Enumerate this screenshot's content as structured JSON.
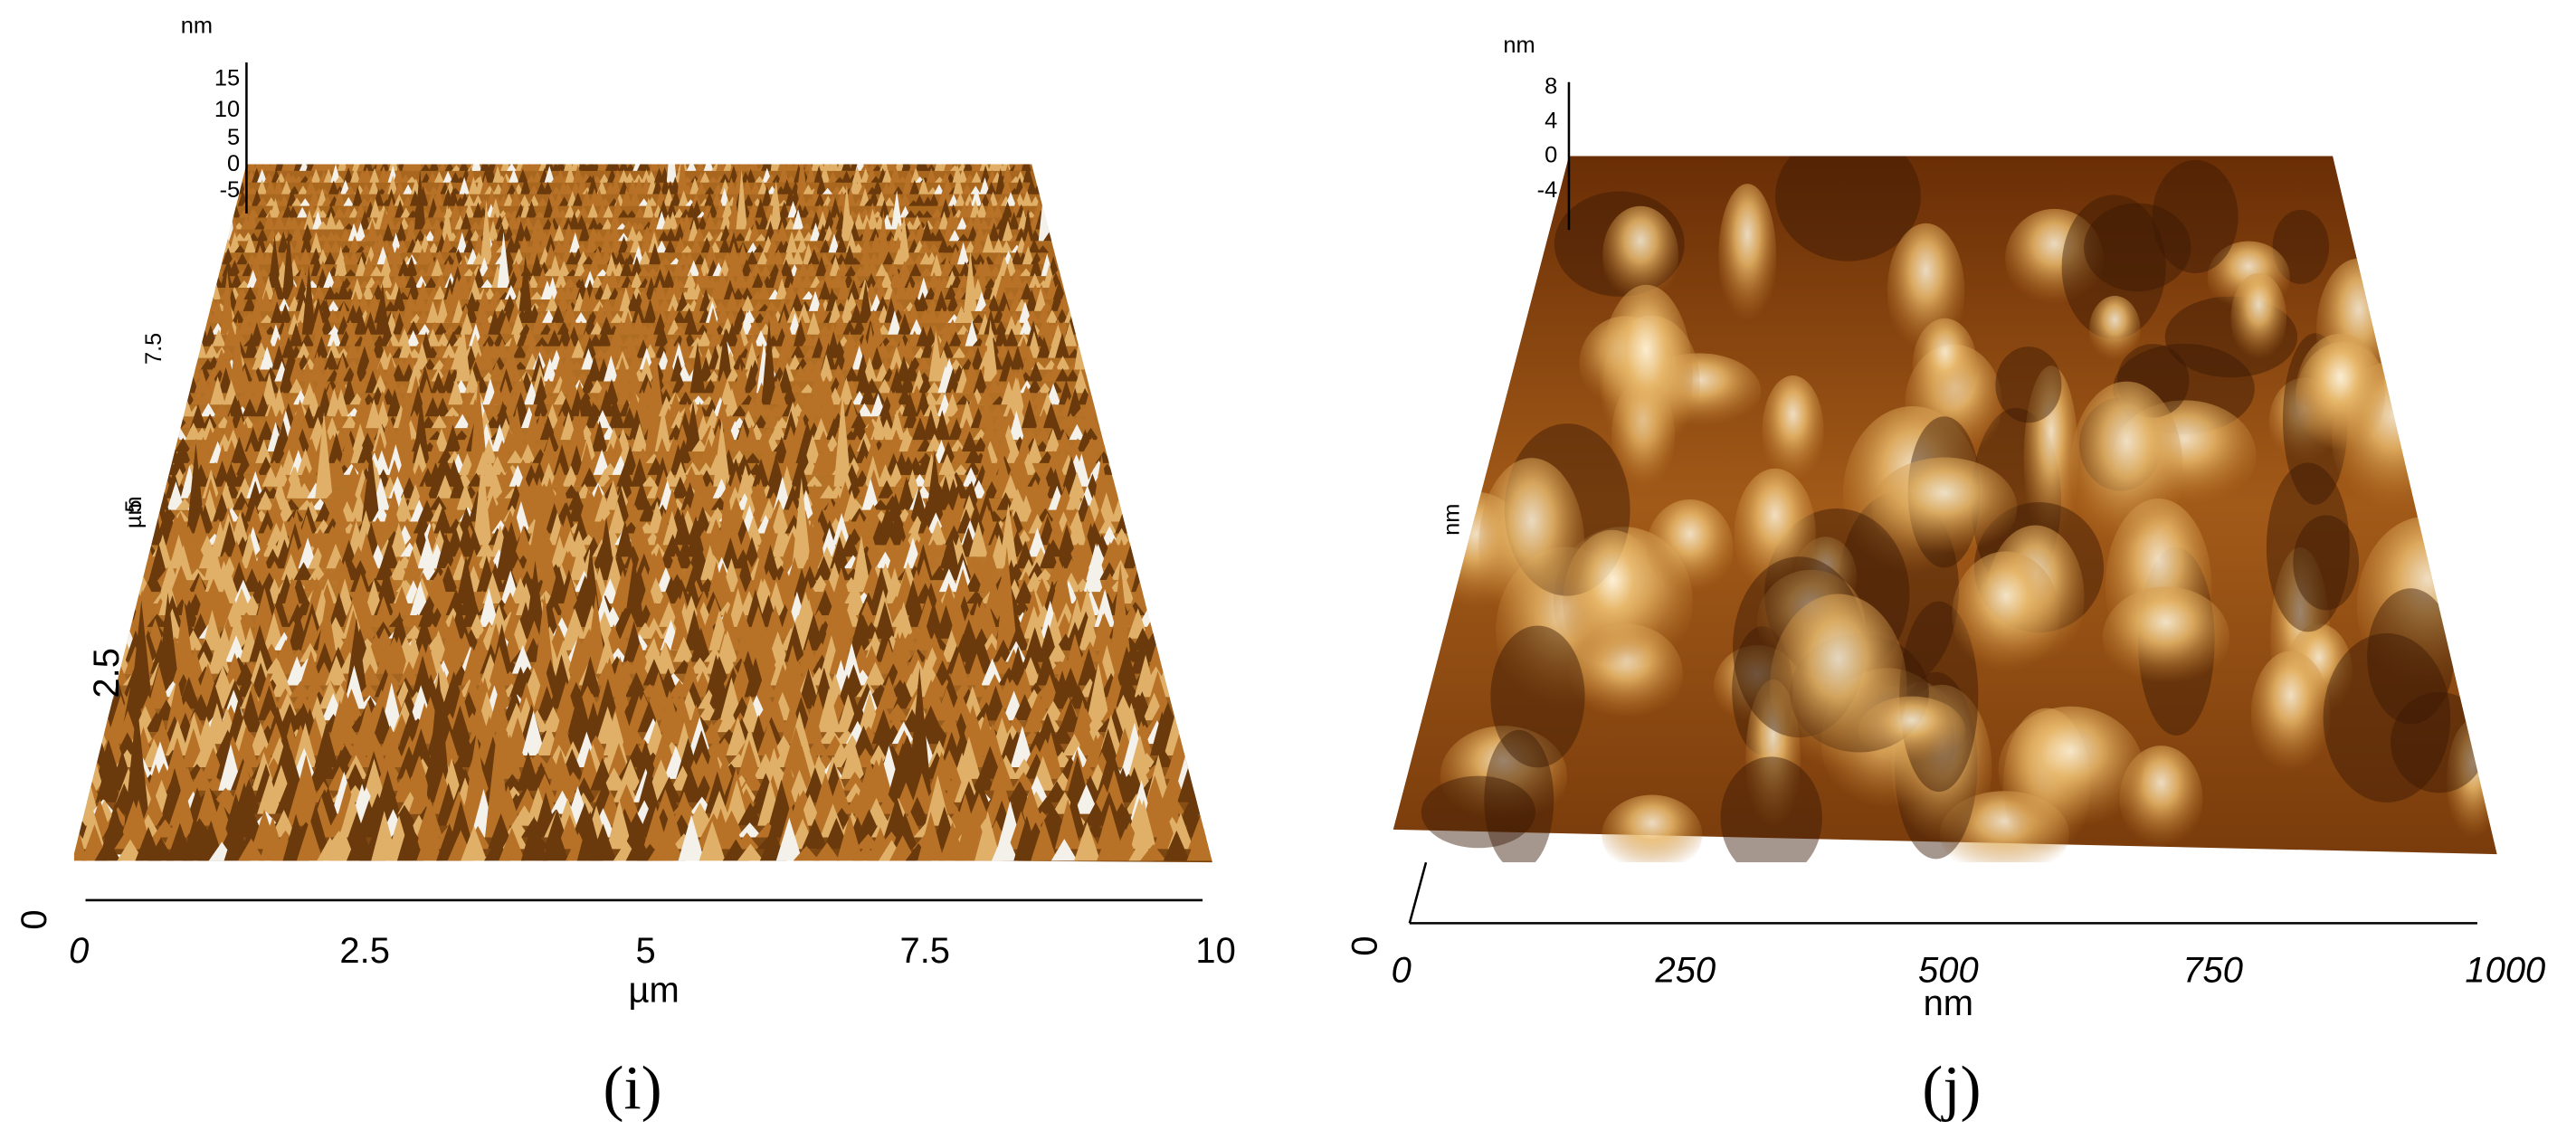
{
  "panels": [
    {
      "label": "(i)",
      "z_axis": {
        "unit": "nm",
        "ticks": [
          "15",
          "10",
          "5",
          "0",
          "-5"
        ]
      },
      "y_axis": {
        "unit": "µm",
        "ticks": [
          "2.5",
          "5",
          "7.5"
        ]
      },
      "origin": "0",
      "x_axis": {
        "unit": "µm",
        "ticks": [
          "0",
          "2.5",
          "5",
          "7.5",
          "10"
        ]
      }
    },
    {
      "label": "(j)",
      "z_axis": {
        "unit": "nm",
        "ticks": [
          "8",
          "4",
          "0",
          "-4"
        ]
      },
      "y_axis": {
        "unit": "nm"
      },
      "origin": "0",
      "x_axis": {
        "unit": "nm",
        "ticks": [
          "0",
          "250",
          "500",
          "750",
          "1000"
        ]
      }
    }
  ]
}
